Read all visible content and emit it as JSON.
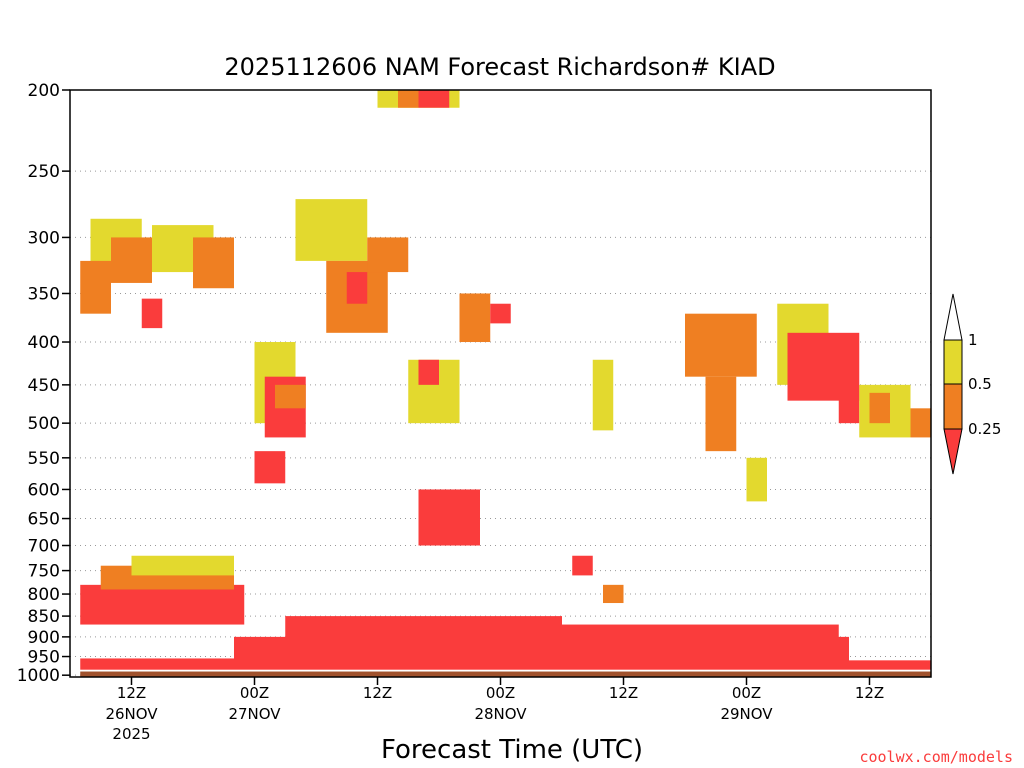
{
  "chart_data": {
    "type": "heatmap",
    "title": "2025112606 NAM Forecast Richardson# KIAD",
    "xlabel": "Forecast Time (UTC)",
    "ylabel": "",
    "credit": "coolwx.com/models",
    "y_scale": "log",
    "y_inverted": true,
    "ylim": [
      1005,
      200
    ],
    "y_ticks": [
      200,
      250,
      300,
      350,
      400,
      450,
      500,
      550,
      600,
      650,
      700,
      750,
      800,
      850,
      900,
      950,
      1000
    ],
    "xlim": [
      "2025-11-26T06Z",
      "2025-11-29T18Z"
    ],
    "x_ticks": [
      {
        "time": "2025-11-26T12Z",
        "label": "12Z",
        "date": "26NOV",
        "year": "2025"
      },
      {
        "time": "2025-11-27T00Z",
        "label": "00Z",
        "date": "27NOV",
        "year": ""
      },
      {
        "time": "2025-11-27T12Z",
        "label": "12Z",
        "date": "",
        "year": ""
      },
      {
        "time": "2025-11-28T00Z",
        "label": "00Z",
        "date": "28NOV",
        "year": ""
      },
      {
        "time": "2025-11-28T12Z",
        "label": "12Z",
        "date": "",
        "year": ""
      },
      {
        "time": "2025-11-29T00Z",
        "label": "00Z",
        "date": "29NOV",
        "year": ""
      },
      {
        "time": "2025-11-29T12Z",
        "label": "12Z",
        "date": "",
        "year": ""
      }
    ],
    "grid": "dotted horizontal at pressure ticks",
    "legend": {
      "placement": "right",
      "levels": [
        {
          "label": "1",
          "range": "0.5-1",
          "color": "#e3d92e"
        },
        {
          "label": "0.5",
          "range": "0.25-0.5",
          "color": "#ef7f22"
        },
        {
          "label": "0.25",
          "range": "<0.25",
          "color": "#fa3c3c"
        }
      ]
    },
    "ground_color": "#a0522d",
    "regions": [
      {
        "t": [
          "2025-11-26T07Z",
          "2025-11-29T18Z"
        ],
        "p": [
          990,
          1005
        ],
        "category": "ground"
      },
      {
        "t": [
          "2025-11-26T07Z",
          "2025-11-26T22Z"
        ],
        "p": [
          955,
          985
        ],
        "category": "<0.25"
      },
      {
        "t": [
          "2025-11-26T22Z",
          "2025-11-29T10Z"
        ],
        "p": [
          900,
          985
        ],
        "category": "<0.25"
      },
      {
        "t": [
          "2025-11-27T03Z",
          "2025-11-28T06Z"
        ],
        "p": [
          850,
          910
        ],
        "category": "<0.25"
      },
      {
        "t": [
          "2025-11-28T06Z",
          "2025-11-29T09Z"
        ],
        "p": [
          870,
          915
        ],
        "category": "<0.25"
      },
      {
        "t": [
          "2025-11-29T10Z",
          "2025-11-29T18Z"
        ],
        "p": [
          960,
          985
        ],
        "category": "<0.25"
      },
      {
        "t": [
          "2025-11-26T07Z",
          "2025-11-26T23Z"
        ],
        "p": [
          780,
          870
        ],
        "category": "<0.25"
      },
      {
        "t": [
          "2025-11-26T09Z",
          "2025-11-26T22Z"
        ],
        "p": [
          740,
          790
        ],
        "category": "0.25-0.5"
      },
      {
        "t": [
          "2025-11-26T12Z",
          "2025-11-26T22Z"
        ],
        "p": [
          720,
          760
        ],
        "category": "0.5-1"
      },
      {
        "t": [
          "2025-11-26T08Z",
          "2025-11-26T13Z"
        ],
        "p": [
          285,
          330
        ],
        "category": "0.5-1"
      },
      {
        "t": [
          "2025-11-26T10Z",
          "2025-11-26T14Z"
        ],
        "p": [
          300,
          340
        ],
        "category": "0.25-0.5"
      },
      {
        "t": [
          "2025-11-26T07Z",
          "2025-11-26T10Z"
        ],
        "p": [
          320,
          370
        ],
        "category": "0.25-0.5"
      },
      {
        "t": [
          "2025-11-26T14Z",
          "2025-11-26T20Z"
        ],
        "p": [
          290,
          330
        ],
        "category": "0.5-1"
      },
      {
        "t": [
          "2025-11-26T18Z",
          "2025-11-26T22Z"
        ],
        "p": [
          300,
          345
        ],
        "category": "0.25-0.5"
      },
      {
        "t": [
          "2025-11-26T13Z",
          "2025-11-26T15Z"
        ],
        "p": [
          355,
          385
        ],
        "category": "<0.25"
      },
      {
        "t": [
          "2025-11-27T00Z",
          "2025-11-27T04Z"
        ],
        "p": [
          400,
          500
        ],
        "category": "0.5-1"
      },
      {
        "t": [
          "2025-11-27T01Z",
          "2025-11-27T05Z"
        ],
        "p": [
          440,
          520
        ],
        "category": "<0.25"
      },
      {
        "t": [
          "2025-11-27T02Z",
          "2025-11-27T05Z"
        ],
        "p": [
          450,
          480
        ],
        "category": "0.25-0.5"
      },
      {
        "t": [
          "2025-11-27T00Z",
          "2025-11-27T03Z"
        ],
        "p": [
          540,
          590
        ],
        "category": "<0.25"
      },
      {
        "t": [
          "2025-11-27T04Z",
          "2025-11-27T11Z"
        ],
        "p": [
          270,
          320
        ],
        "category": "0.5-1"
      },
      {
        "t": [
          "2025-11-27T07Z",
          "2025-11-27T13Z"
        ],
        "p": [
          320,
          390
        ],
        "category": "0.25-0.5"
      },
      {
        "t": [
          "2025-11-27T09Z",
          "2025-11-27T11Z"
        ],
        "p": [
          330,
          360
        ],
        "category": "<0.25"
      },
      {
        "t": [
          "2025-11-27T11Z",
          "2025-11-27T15Z"
        ],
        "p": [
          300,
          330
        ],
        "category": "0.25-0.5"
      },
      {
        "t": [
          "2025-11-27T12Z",
          "2025-11-27T20Z"
        ],
        "p": [
          200,
          210
        ],
        "category": "0.5-1"
      },
      {
        "t": [
          "2025-11-27T14Z",
          "2025-11-27T16Z"
        ],
        "p": [
          200,
          210
        ],
        "category": "0.25-0.5"
      },
      {
        "t": [
          "2025-11-27T16Z",
          "2025-11-27T19Z"
        ],
        "p": [
          200,
          210
        ],
        "category": "<0.25"
      },
      {
        "t": [
          "2025-11-27T15Z",
          "2025-11-27T20Z"
        ],
        "p": [
          420,
          500
        ],
        "category": "0.5-1"
      },
      {
        "t": [
          "2025-11-27T16Z",
          "2025-11-27T18Z"
        ],
        "p": [
          420,
          450
        ],
        "category": "<0.25"
      },
      {
        "t": [
          "2025-11-27T16Z",
          "2025-11-27T22Z"
        ],
        "p": [
          600,
          700
        ],
        "category": "<0.25"
      },
      {
        "t": [
          "2025-11-27T20Z",
          "2025-11-27T23Z"
        ],
        "p": [
          350,
          400
        ],
        "category": "0.25-0.5"
      },
      {
        "t": [
          "2025-11-27T23Z",
          "2025-11-28T01Z"
        ],
        "p": [
          360,
          380
        ],
        "category": "<0.25"
      },
      {
        "t": [
          "2025-11-28T09Z",
          "2025-11-28T11Z"
        ],
        "p": [
          420,
          510
        ],
        "category": "0.5-1"
      },
      {
        "t": [
          "2025-11-28T07Z",
          "2025-11-28T09Z"
        ],
        "p": [
          720,
          760
        ],
        "category": "<0.25"
      },
      {
        "t": [
          "2025-11-28T10Z",
          "2025-11-28T12Z"
        ],
        "p": [
          780,
          820
        ],
        "category": "0.25-0.5"
      },
      {
        "t": [
          "2025-11-28T18Z",
          "2025-11-29T01Z"
        ],
        "p": [
          370,
          440
        ],
        "category": "0.25-0.5"
      },
      {
        "t": [
          "2025-11-28T20Z",
          "2025-11-28T23Z"
        ],
        "p": [
          440,
          540
        ],
        "category": "0.25-0.5"
      },
      {
        "t": [
          "2025-11-29T00Z",
          "2025-11-29T02Z"
        ],
        "p": [
          550,
          620
        ],
        "category": "0.5-1"
      },
      {
        "t": [
          "2025-11-29T03Z",
          "2025-11-29T08Z"
        ],
        "p": [
          360,
          450
        ],
        "category": "0.5-1"
      },
      {
        "t": [
          "2025-11-29T04Z",
          "2025-11-29T11Z"
        ],
        "p": [
          390,
          470
        ],
        "category": "<0.25"
      },
      {
        "t": [
          "2025-11-29T09Z",
          "2025-11-29T11Z"
        ],
        "p": [
          450,
          500
        ],
        "category": "<0.25"
      },
      {
        "t": [
          "2025-11-29T11Z",
          "2025-11-29T16Z"
        ],
        "p": [
          450,
          520
        ],
        "category": "0.5-1"
      },
      {
        "t": [
          "2025-11-29T12Z",
          "2025-11-29T14Z"
        ],
        "p": [
          460,
          500
        ],
        "category": "0.25-0.5"
      },
      {
        "t": [
          "2025-11-29T16Z",
          "2025-11-29T18Z"
        ],
        "p": [
          480,
          520
        ],
        "category": "0.25-0.5"
      }
    ]
  }
}
